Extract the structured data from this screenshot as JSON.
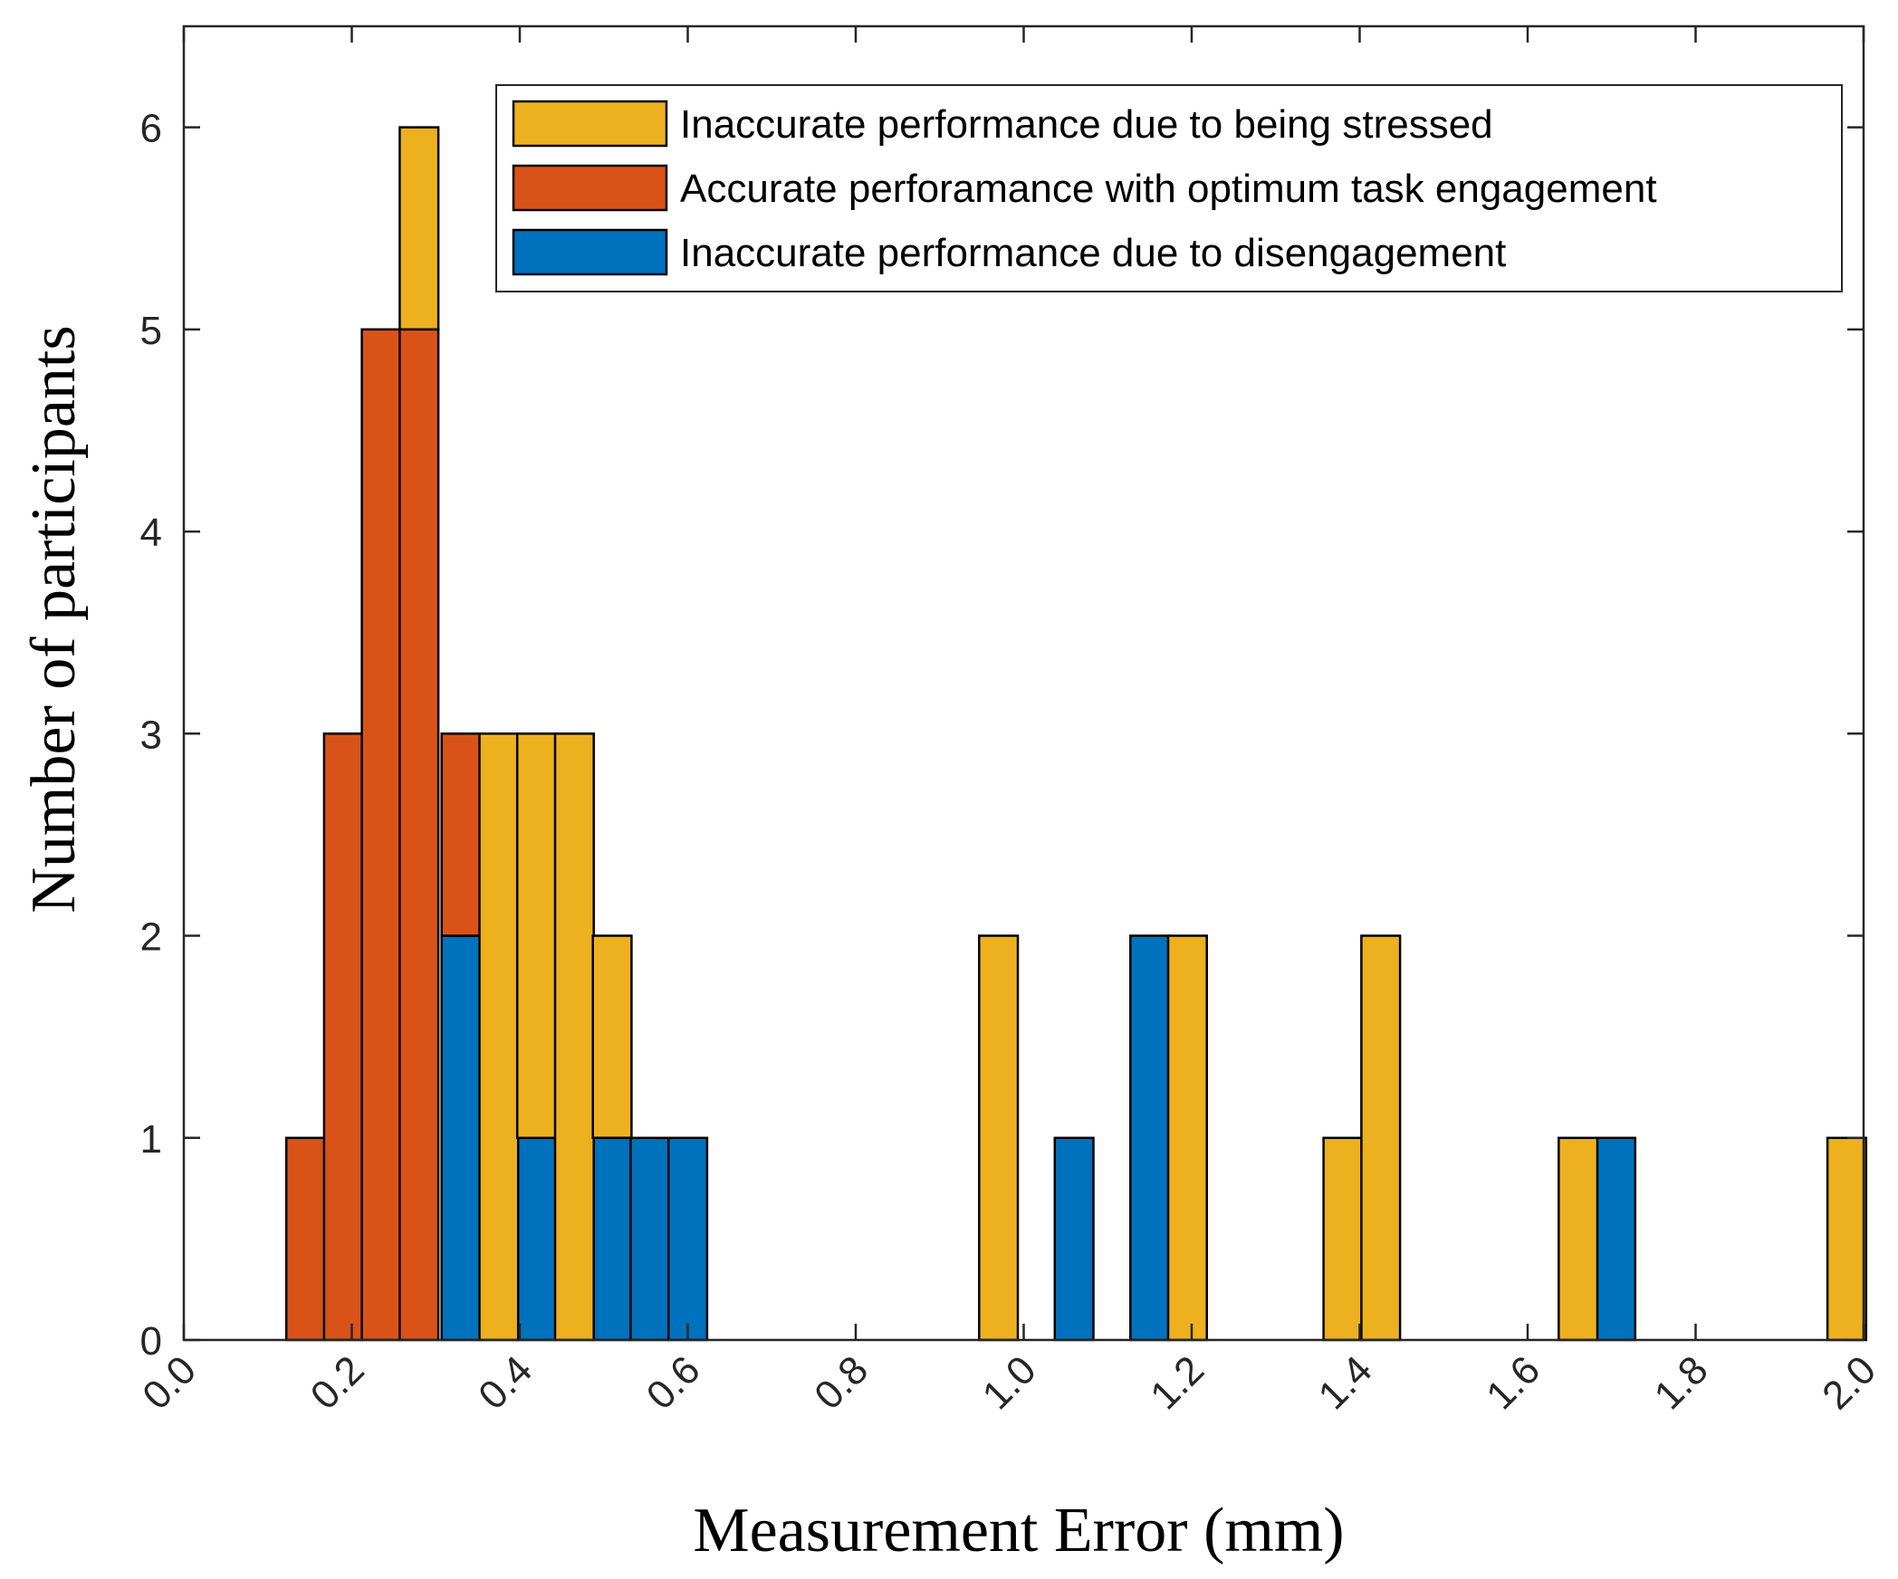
{
  "chart_data": {
    "type": "bar",
    "stacked": true,
    "xlabel": "Measurement Error (mm)",
    "ylabel": "Number of participants",
    "xlim": [
      0.0,
      2.0
    ],
    "ylim": [
      0,
      6.5
    ],
    "x_ticks": [
      "0.0",
      "0.2",
      "0.4",
      "0.6",
      "0.8",
      "1.0",
      "1.2",
      "1.4",
      "1.6",
      "1.8",
      "2.0"
    ],
    "y_ticks": [
      "0",
      "1",
      "2",
      "3",
      "4",
      "5",
      "6"
    ],
    "legend_position": "top-right",
    "bin_width": 0.046,
    "series": [
      {
        "name": "Inaccurate performance due to disengagement",
        "color": "#0072BD",
        "bars": [
          {
            "x": 0.33,
            "value": 2
          },
          {
            "x": 0.42,
            "value": 1
          },
          {
            "x": 0.51,
            "value": 1
          },
          {
            "x": 0.555,
            "value": 1
          },
          {
            "x": 0.6,
            "value": 1
          },
          {
            "x": 1.06,
            "value": 1
          },
          {
            "x": 1.15,
            "value": 2
          },
          {
            "x": 1.705,
            "value": 1
          }
        ]
      },
      {
        "name": "Accurate perforamance with optimum task engagement",
        "color": "#D95319",
        "bars": [
          {
            "x": 0.145,
            "value": 1
          },
          {
            "x": 0.19,
            "value": 3
          },
          {
            "x": 0.235,
            "value": 5
          },
          {
            "x": 0.28,
            "value": 5
          },
          {
            "x": 0.33,
            "value": 1
          }
        ]
      },
      {
        "name": "Inaccurate performance due to being stressed",
        "color": "#EDB120",
        "bars": [
          {
            "x": 0.28,
            "value": 1
          },
          {
            "x": 0.375,
            "value": 3
          },
          {
            "x": 0.42,
            "value": 2
          },
          {
            "x": 0.465,
            "value": 3
          },
          {
            "x": 0.51,
            "value": 1
          },
          {
            "x": 0.97,
            "value": 2
          },
          {
            "x": 1.195,
            "value": 2
          },
          {
            "x": 1.38,
            "value": 1
          },
          {
            "x": 1.425,
            "value": 2
          },
          {
            "x": 1.66,
            "value": 1
          },
          {
            "x": 1.98,
            "value": 1
          }
        ]
      }
    ],
    "legend_order": [
      "Inaccurate performance due to being stressed",
      "Accurate perforamance with optimum task engagement",
      "Inaccurate performance due to disengagement"
    ]
  }
}
